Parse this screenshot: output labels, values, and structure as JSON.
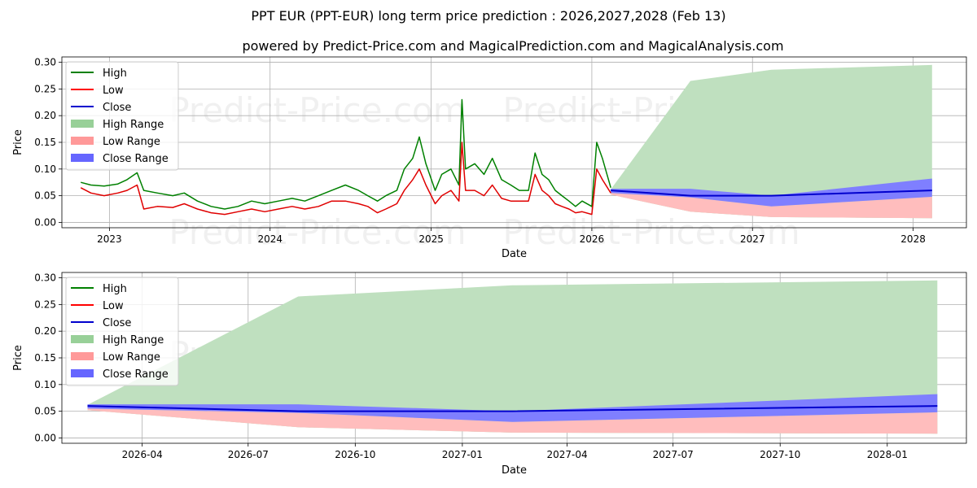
{
  "chart_data": [
    {
      "type": "line",
      "title": "PPT EUR (PPT-EUR) long term price prediction : 2026,2027,2028 (Feb 13)",
      "subtitle": "powered by Predict-Price.com and MagicalPrediction.com and MagicalAnalysis.com",
      "xlabel": "Date",
      "ylabel": "Price",
      "xlim": [
        "2022-09-15",
        "2028-05-01"
      ],
      "ylim": [
        -0.01,
        0.31
      ],
      "yticks": [
        0.0,
        0.05,
        0.1,
        0.15,
        0.2,
        0.25,
        0.3
      ],
      "ytick_labels": [
        "0.00",
        "0.05",
        "0.10",
        "0.15",
        "0.20",
        "0.25",
        "0.30"
      ],
      "xticks": [
        "2023-01-01",
        "2024-01-01",
        "2025-01-01",
        "2026-01-01",
        "2027-01-01",
        "2028-01-01"
      ],
      "xtick_labels": [
        "2023",
        "2024",
        "2025",
        "2026",
        "2027",
        "2028"
      ],
      "grid": true,
      "legend_position": "top-left",
      "watermarks": [
        "Predict-Price.com",
        "Predict-Price.com",
        "Predict-Price.com",
        "Predict-Price.com"
      ],
      "history": {
        "dates": [
          "2022-10-28",
          "2022-11-20",
          "2022-12-20",
          "2023-01-20",
          "2023-02-10",
          "2023-03-05",
          "2023-03-20",
          "2023-04-20",
          "2023-05-25",
          "2023-06-20",
          "2023-07-20",
          "2023-08-20",
          "2023-09-20",
          "2023-10-20",
          "2023-11-20",
          "2023-12-20",
          "2024-01-20",
          "2024-02-20",
          "2024-03-20",
          "2024-04-20",
          "2024-05-20",
          "2024-06-20",
          "2024-07-20",
          "2024-08-10",
          "2024-09-01",
          "2024-09-20",
          "2024-10-15",
          "2024-11-01",
          "2024-11-20",
          "2024-12-05",
          "2024-12-20",
          "2025-01-10",
          "2025-01-25",
          "2025-02-15",
          "2025-03-05",
          "2025-03-12",
          "2025-03-20",
          "2025-04-10",
          "2025-05-01",
          "2025-05-20",
          "2025-06-10",
          "2025-07-01",
          "2025-07-20",
          "2025-08-10",
          "2025-08-25",
          "2025-09-10",
          "2025-09-25",
          "2025-10-10",
          "2025-10-25",
          "2025-11-10",
          "2025-11-25",
          "2025-12-10",
          "2026-01-01",
          "2026-01-12",
          "2026-01-25",
          "2026-02-13"
        ],
        "high": [
          0.075,
          0.07,
          0.068,
          0.072,
          0.08,
          0.093,
          0.06,
          0.055,
          0.05,
          0.055,
          0.04,
          0.03,
          0.025,
          0.03,
          0.04,
          0.035,
          0.04,
          0.045,
          0.04,
          0.05,
          0.06,
          0.07,
          0.06,
          0.05,
          0.04,
          0.05,
          0.06,
          0.1,
          0.12,
          0.16,
          0.11,
          0.06,
          0.09,
          0.1,
          0.07,
          0.23,
          0.1,
          0.11,
          0.09,
          0.12,
          0.08,
          0.07,
          0.06,
          0.06,
          0.13,
          0.09,
          0.08,
          0.06,
          0.05,
          0.04,
          0.03,
          0.04,
          0.03,
          0.15,
          0.12,
          0.065
        ],
        "low": [
          0.065,
          0.055,
          0.05,
          0.055,
          0.06,
          0.07,
          0.025,
          0.03,
          0.028,
          0.035,
          0.025,
          0.018,
          0.015,
          0.02,
          0.025,
          0.02,
          0.025,
          0.03,
          0.025,
          0.03,
          0.04,
          0.04,
          0.035,
          0.03,
          0.018,
          0.025,
          0.035,
          0.06,
          0.08,
          0.1,
          0.07,
          0.035,
          0.05,
          0.06,
          0.04,
          0.15,
          0.06,
          0.06,
          0.05,
          0.07,
          0.045,
          0.04,
          0.04,
          0.04,
          0.09,
          0.06,
          0.05,
          0.035,
          0.03,
          0.025,
          0.018,
          0.02,
          0.015,
          0.1,
          0.08,
          0.055
        ]
      },
      "forecast": {
        "dates": [
          "2026-02-13",
          "2026-08-13",
          "2027-02-13",
          "2028-02-13"
        ],
        "high_range": [
          0.062,
          0.265,
          0.286,
          0.295
        ],
        "low_range": [
          0.052,
          0.02,
          0.01,
          0.008
        ],
        "close_range_upper": [
          0.063,
          0.063,
          0.05,
          0.082
        ],
        "close_range_lower": [
          0.055,
          0.047,
          0.03,
          0.048
        ],
        "close": [
          0.06,
          0.05,
          0.05,
          0.06
        ]
      }
    },
    {
      "type": "line",
      "xlabel": "Date",
      "ylabel": "Price",
      "xlim": [
        "2026-01-22",
        "2028-03-09"
      ],
      "ylim": [
        -0.01,
        0.31
      ],
      "yticks": [
        0.0,
        0.05,
        0.1,
        0.15,
        0.2,
        0.25,
        0.3
      ],
      "ytick_labels": [
        "0.00",
        "0.05",
        "0.10",
        "0.15",
        "0.20",
        "0.25",
        "0.30"
      ],
      "xticks": [
        "2026-04-01",
        "2026-07-01",
        "2026-10-01",
        "2027-01-01",
        "2027-04-01",
        "2027-07-01",
        "2027-10-01",
        "2028-01-01"
      ],
      "xtick_labels": [
        "2026-04",
        "2026-07",
        "2026-10",
        "2027-01",
        "2027-04",
        "2027-07",
        "2027-10",
        "2028-01"
      ],
      "grid": true,
      "legend_position": "top-left",
      "watermarks": [
        "Predict-Price.com",
        "Predict-Price.com"
      ],
      "forecast": {
        "dates": [
          "2026-02-13",
          "2026-08-13",
          "2027-02-13",
          "2028-02-13"
        ],
        "high_range": [
          0.062,
          0.265,
          0.286,
          0.295
        ],
        "low_range": [
          0.052,
          0.02,
          0.01,
          0.008
        ],
        "close_range_upper": [
          0.063,
          0.063,
          0.05,
          0.082
        ],
        "close_range_lower": [
          0.055,
          0.047,
          0.03,
          0.048
        ],
        "close": [
          0.06,
          0.05,
          0.05,
          0.06
        ]
      }
    }
  ],
  "legend": {
    "entries": [
      {
        "label": "High",
        "kind": "line",
        "color": "#008000"
      },
      {
        "label": "Low",
        "kind": "line",
        "color": "#ff0000"
      },
      {
        "label": "Close",
        "kind": "line",
        "color": "#0000cd"
      },
      {
        "label": "High Range",
        "kind": "patch",
        "color": "#98d098"
      },
      {
        "label": "Low Range",
        "kind": "patch",
        "color": "#ff9999"
      },
      {
        "label": "Close Range",
        "kind": "patch",
        "color": "#6666ff"
      }
    ]
  },
  "colors": {
    "high": "#008000",
    "low": "#e00000",
    "close": "#0000cd",
    "high_range": "#bfe0bf",
    "low_range": "#ffbdbd",
    "close_range": "#7f7fff"
  }
}
